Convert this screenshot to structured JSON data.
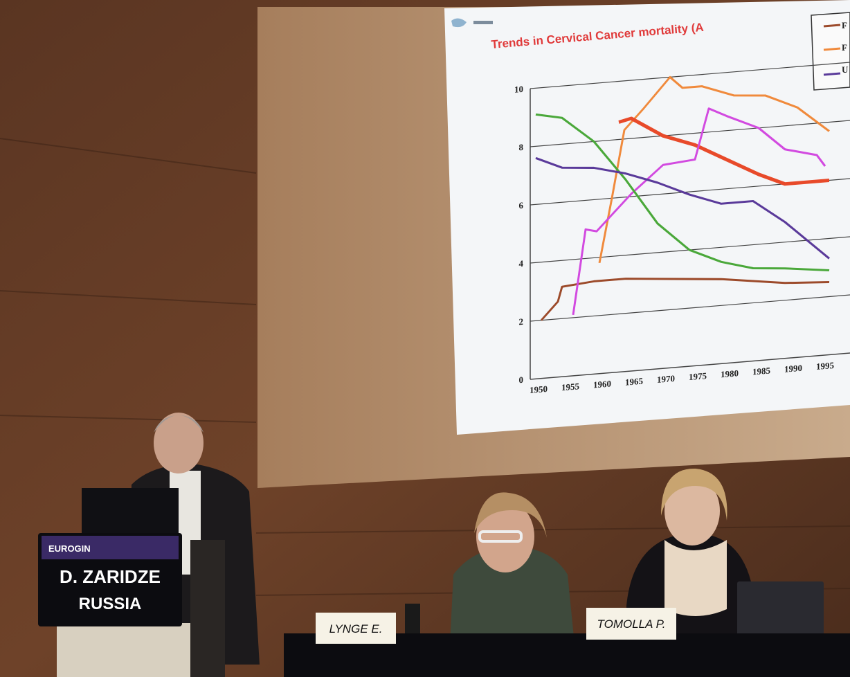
{
  "slide": {
    "title": "Trends in Cervical Cancer mortality (A",
    "legend": [
      "F",
      "F",
      "U"
    ],
    "yticks": [
      0,
      2,
      4,
      6,
      8,
      10
    ],
    "xticks": [
      1950,
      1955,
      1960,
      1965,
      1970,
      1975,
      1980,
      1985,
      1990,
      1995
    ]
  },
  "podium": {
    "logo": "EUROGIN",
    "name": "D. ZARIDZE",
    "country": "RUSSIA"
  },
  "name_cards": [
    "LYNGE E.",
    "TOMOLLA P."
  ]
}
